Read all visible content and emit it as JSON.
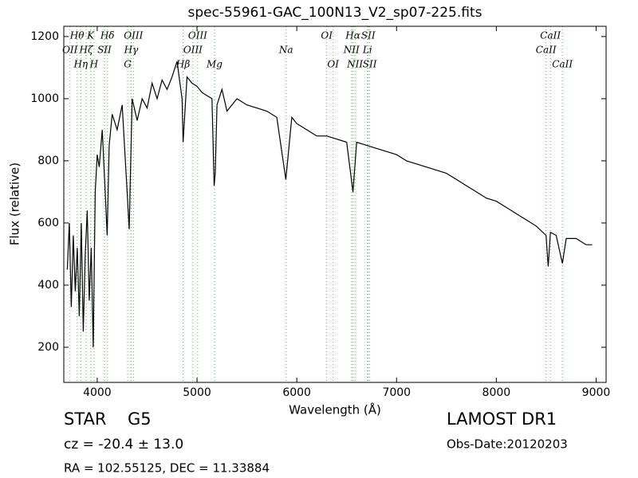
{
  "chart_data": {
    "type": "line",
    "title": "spec-55961-GAC_100N13_V2_sp07-225.fits",
    "xlabel": "Wavelength (Å)",
    "ylabel": "Flux (relative)",
    "xlim": [
      3665,
      9100
    ],
    "ylim": [
      87,
      1233
    ],
    "xticks": [
      4000,
      5000,
      6000,
      7000,
      8000,
      9000
    ],
    "yticks": [
      200,
      400,
      600,
      800,
      1000,
      1200
    ],
    "grid": false,
    "color": "#000000",
    "line_color": "#5cb85c",
    "x": [
      3700,
      3720,
      3740,
      3760,
      3780,
      3800,
      3820,
      3840,
      3860,
      3880,
      3900,
      3920,
      3940,
      3960,
      3980,
      4000,
      4020,
      4050,
      4080,
      4100,
      4120,
      4150,
      4200,
      4250,
      4300,
      4320,
      4350,
      4400,
      4450,
      4500,
      4550,
      4600,
      4650,
      4700,
      4750,
      4800,
      4850,
      4861,
      4900,
      4950,
      5000,
      5050,
      5100,
      5150,
      5172,
      5183,
      5200,
      5250,
      5300,
      5400,
      5500,
      5600,
      5700,
      5800,
      5890,
      5950,
      6000,
      6100,
      6200,
      6300,
      6400,
      6500,
      6563,
      6600,
      6700,
      6800,
      6900,
      7000,
      7100,
      7200,
      7300,
      7400,
      7500,
      7600,
      7700,
      7800,
      7900,
      8000,
      8100,
      8200,
      8300,
      8400,
      8498,
      8520,
      8542,
      8600,
      8662,
      8700,
      8800,
      8900,
      8960
    ],
    "values": [
      450,
      600,
      330,
      560,
      380,
      520,
      300,
      600,
      250,
      500,
      640,
      350,
      520,
      200,
      700,
      820,
      780,
      900,
      700,
      560,
      850,
      950,
      900,
      980,
      700,
      580,
      1000,
      930,
      1000,
      970,
      1050,
      1000,
      1060,
      1030,
      1070,
      1120,
      1000,
      860,
      1070,
      1050,
      1040,
      1020,
      1010,
      1000,
      720,
      760,
      980,
      1030,
      960,
      1000,
      980,
      970,
      960,
      940,
      740,
      940,
      920,
      900,
      880,
      880,
      870,
      860,
      700,
      860,
      850,
      840,
      830,
      820,
      800,
      790,
      780,
      770,
      760,
      740,
      720,
      700,
      680,
      670,
      650,
      630,
      610,
      590,
      560,
      460,
      570,
      560,
      470,
      550,
      550,
      530,
      530
    ],
    "lines": [
      {
        "label": "Hθ",
        "wavelength": 3798
      },
      {
        "label": "K",
        "wavelength": 3934
      },
      {
        "label": "Hδ",
        "wavelength": 4102
      },
      {
        "label": "OIII",
        "wavelength": 4363
      },
      {
        "label": "OIII",
        "wavelength": 5007
      },
      {
        "label": "OI",
        "wavelength": 6300
      },
      {
        "label": "Hα",
        "wavelength": 6563
      },
      {
        "label": "SII",
        "wavelength": 6716
      },
      {
        "label": "CaII",
        "wavelength": 8542
      },
      {
        "label": "OII",
        "wavelength": 3727
      },
      {
        "label": "Hζ",
        "wavelength": 3889
      },
      {
        "label": "SII",
        "wavelength": 4072
      },
      {
        "label": "Hγ",
        "wavelength": 4340
      },
      {
        "label": "OIII",
        "wavelength": 4959
      },
      {
        "label": "Na",
        "wavelength": 5893
      },
      {
        "label": "NII",
        "wavelength": 6548
      },
      {
        "label": "Li",
        "wavelength": 6708
      },
      {
        "label": "CaII",
        "wavelength": 8498
      },
      {
        "label": "Hη",
        "wavelength": 3835
      },
      {
        "label": "H",
        "wavelength": 3968
      },
      {
        "label": "G",
        "wavelength": 4305
      },
      {
        "label": "Hβ",
        "wavelength": 4861
      },
      {
        "label": "Mg",
        "wavelength": 5175
      },
      {
        "label": "OI",
        "wavelength": 6364
      },
      {
        "label": "NII",
        "wavelength": 6583
      },
      {
        "label": "SII",
        "wavelength": 6731
      },
      {
        "label": "CaII",
        "wavelength": 8662
      }
    ]
  },
  "info": {
    "class": "STAR",
    "subclass": "G5",
    "redshift": "cz = -20.4 ± 13.0",
    "coords": "RA = 102.55125, DEC = 11.33884",
    "survey": "LAMOST DR1",
    "obs_date": "Obs-Date:20120203"
  }
}
